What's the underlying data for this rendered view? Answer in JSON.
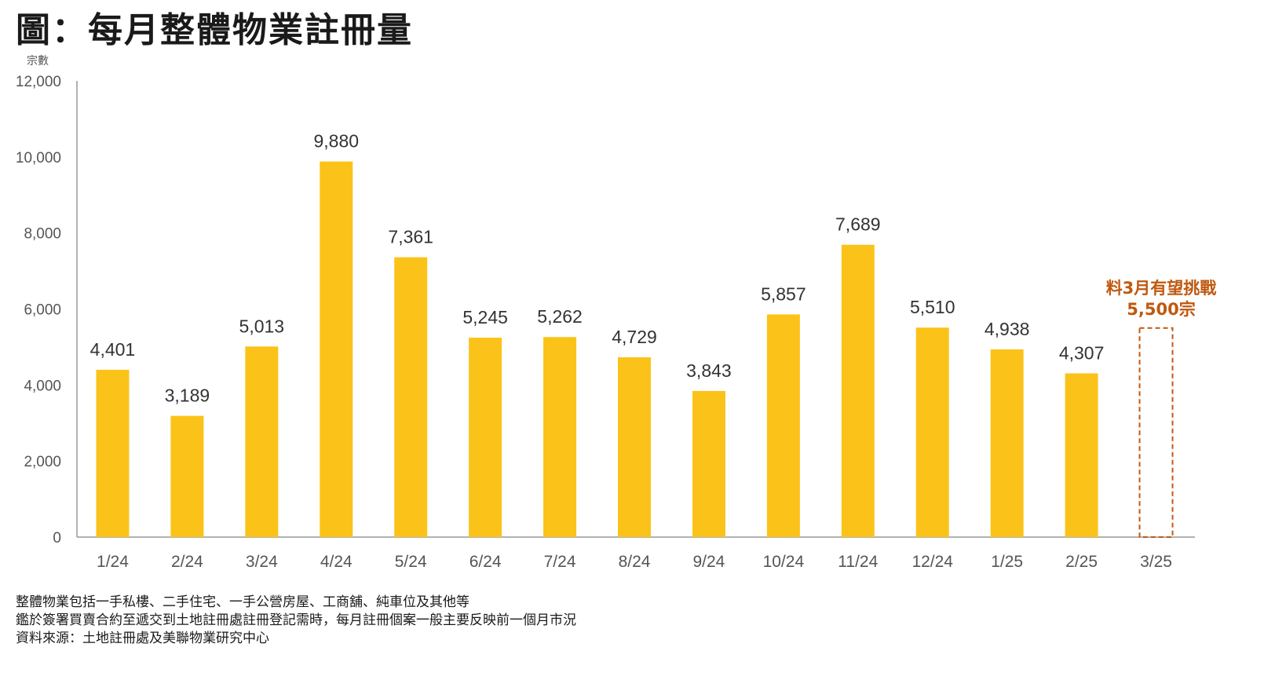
{
  "title": "圖：每月整體物業註冊量",
  "colors": {
    "bar": "#FBC319",
    "annotation": "#C0580F",
    "axis": "#999999"
  },
  "chart_data": {
    "type": "bar",
    "ylabel": "宗數",
    "ylim": [
      0,
      12000
    ],
    "yticks": [
      "0",
      "2,000",
      "4,000",
      "6,000",
      "8,000",
      "10,000",
      "12,000"
    ],
    "ytick_values": [
      0,
      2000,
      4000,
      6000,
      8000,
      10000,
      12000
    ],
    "grid": false,
    "categories": [
      "1/24",
      "2/24",
      "3/24",
      "4/24",
      "5/24",
      "6/24",
      "7/24",
      "8/24",
      "9/24",
      "10/24",
      "11/24",
      "12/24",
      "1/25",
      "2/25",
      "3/25"
    ],
    "values": [
      4401,
      3189,
      5013,
      9880,
      7361,
      5245,
      5262,
      4729,
      3843,
      5857,
      7689,
      5510,
      4938,
      4307,
      null
    ],
    "data_labels": [
      "4,401",
      "3,189",
      "5,013",
      "9,880",
      "7,361",
      "5,245",
      "5,262",
      "4,729",
      "3,843",
      "5,857",
      "7,689",
      "5,510",
      "4,938",
      "4,307",
      ""
    ],
    "forecast": {
      "category": "3/25",
      "value": 5500,
      "style": "dashed-outline",
      "label_line1": "料3月有望挑戰",
      "label_line2": "5,500宗"
    }
  },
  "notes": [
    "整體物業包括一手私樓、二手住宅、一手公營房屋、工商舖、純車位及其他等",
    "鑑於簽署買賣合約至遞交到土地註冊處註冊登記需時，每月註冊個案一般主要反映前一個月市況",
    "資料來源：土地註冊處及美聯物業研究中心"
  ]
}
